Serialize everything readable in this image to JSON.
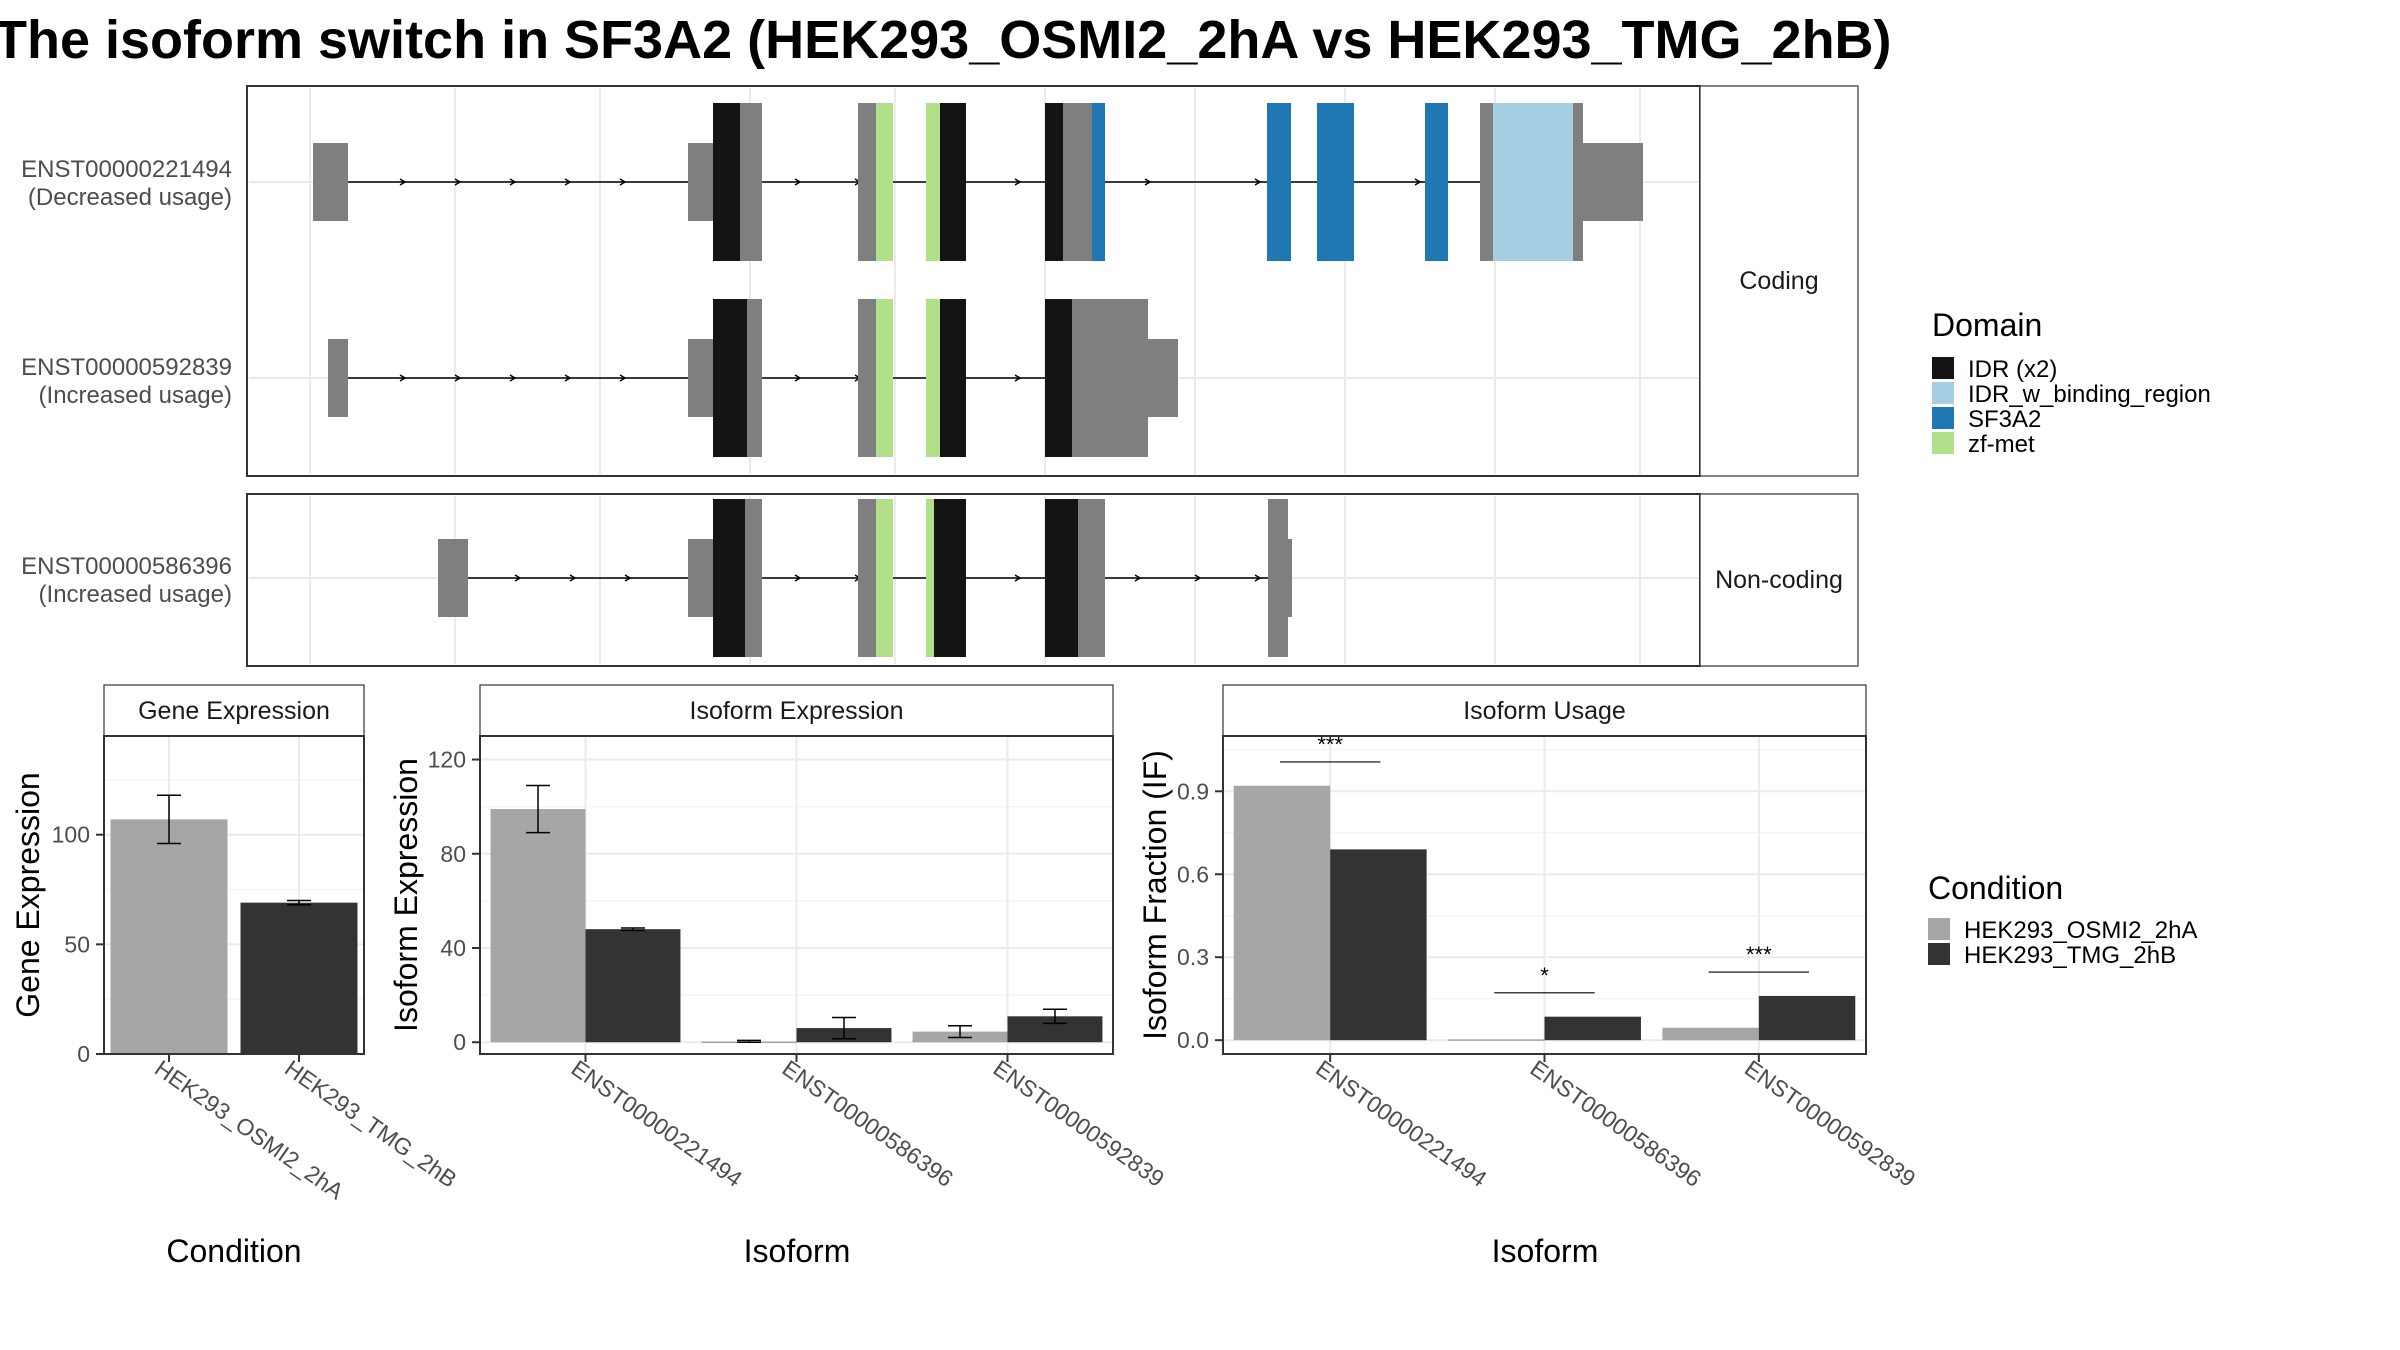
{
  "title": "The isoform switch in SF3A2 (HEK293_OSMI2_2hA vs HEK293_TMG_2hB)",
  "colors": {
    "exon": "#7f7f7f",
    "IDR (x2)": "#141414",
    "IDR_w_binding_region": "#a6cee3",
    "SF3A2": "#1f78b4",
    "zf-met": "#b2df8a",
    "cond1": "#a6a6a6",
    "cond2": "#333333"
  },
  "structure": {
    "coding_strip": "Coding",
    "noncoding_strip": "Non-coding",
    "isoforms": [
      {
        "id": "ENST00000221494",
        "usage": "(Decreased usage)"
      },
      {
        "id": "ENST00000592839",
        "usage": "(Increased usage)"
      },
      {
        "id": "ENST00000586396",
        "usage": "(Increased usage)"
      }
    ],
    "domain_legend": {
      "title": "Domain",
      "items": [
        {
          "label": "IDR (x2)",
          "color": "#141414"
        },
        {
          "label": "IDR_w_binding_region",
          "color": "#a6cee3"
        },
        {
          "label": "SF3A2",
          "color": "#1f78b4"
        },
        {
          "label": "zf-met",
          "color": "#b2df8a"
        }
      ]
    }
  },
  "condition_legend": {
    "title": "Condition",
    "items": [
      {
        "label": "HEK293_OSMI2_2hA",
        "color": "#a6a6a6"
      },
      {
        "label": "HEK293_TMG_2hB",
        "color": "#333333"
      }
    ]
  },
  "chart_data": [
    {
      "type": "bar",
      "strip": "Gene Expression",
      "ylabel": "Gene Expression",
      "xlabel": "Condition",
      "ylim": [
        0,
        145
      ],
      "yticks": [
        0,
        50,
        100
      ],
      "categories": [
        "HEK293_OSMI2_2hA",
        "HEK293_TMG_2hB"
      ],
      "values": [
        107,
        69
      ],
      "errors": [
        [
          96,
          118
        ],
        [
          68,
          70
        ]
      ]
    },
    {
      "type": "bar",
      "strip": "Isoform Expression",
      "ylabel": "Isoform Expression",
      "xlabel": "Isoform",
      "ylim": [
        -5,
        130
      ],
      "yticks": [
        0,
        40,
        80,
        120
      ],
      "categories": [
        "ENST00000221494",
        "ENST00000586396",
        "ENST00000592839"
      ],
      "series": [
        {
          "name": "HEK293_OSMI2_2hA",
          "values": [
            99,
            0.3,
            4.5
          ],
          "errors": [
            [
              89,
              109
            ],
            [
              0,
              0.8
            ],
            [
              2,
              7
            ]
          ]
        },
        {
          "name": "HEK293_TMG_2hB",
          "values": [
            48,
            6,
            11
          ],
          "errors": [
            [
              47.5,
              48.5
            ],
            [
              1.5,
              10.5
            ],
            [
              8,
              14
            ]
          ]
        }
      ]
    },
    {
      "type": "bar",
      "strip": "Isoform Usage",
      "ylabel": "Isoform Fraction (IF)",
      "xlabel": "Isoform",
      "ylim": [
        -0.05,
        1.1
      ],
      "yticks": [
        "0.0",
        "0.3",
        "0.6",
        "0.9"
      ],
      "categories": [
        "ENST00000221494",
        "ENST00000586396",
        "ENST00000592839"
      ],
      "series": [
        {
          "name": "HEK293_OSMI2_2hA",
          "values": [
            0.92,
            0.003,
            0.045
          ]
        },
        {
          "name": "HEK293_TMG_2hB",
          "values": [
            0.69,
            0.085,
            0.16
          ]
        }
      ],
      "significance": [
        "***",
        "*",
        "***"
      ]
    }
  ]
}
